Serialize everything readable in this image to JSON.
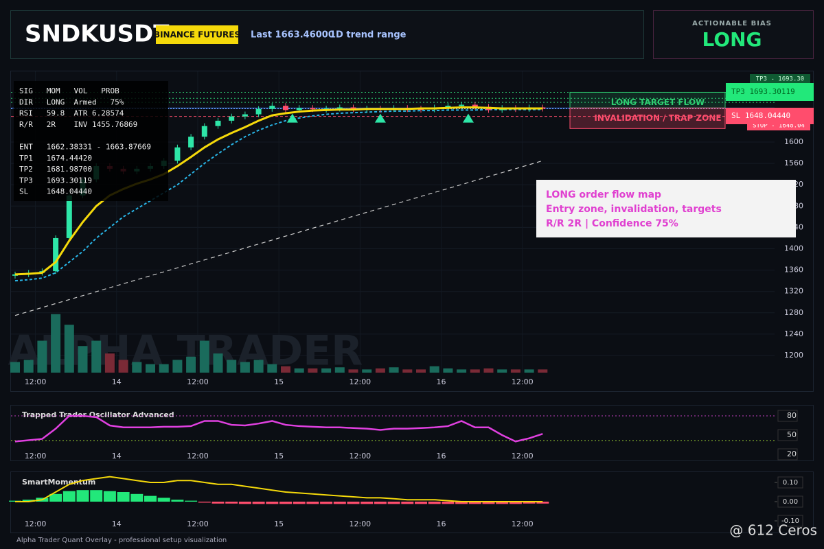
{
  "header": {
    "symbol": "SNDKUSDT",
    "badge": "BINANCE FUTURES",
    "last": "Last 1663.46000",
    "range": "1D trend range"
  },
  "bias": {
    "label": "ACTIONABLE BIAS",
    "value": "LONG"
  },
  "info": {
    "rows": [
      "SIG   MOM   VOL   PROB",
      "DIR   LONG  Armed   75%",
      "RSI   59.8  ATR 6.28574",
      "R/R   2R    INV 1455.76869",
      "",
      "ENT   1662.38331 - 1663.87669",
      "TP1   1674.44420",
      "TP2   1681.98700",
      "TP3   1693.30119",
      "SL    1648.04440"
    ]
  },
  "price": {
    "ylim": [
      1170,
      1710
    ],
    "yticks": [
      1200,
      1240,
      1280,
      1320,
      1360,
      1400,
      1440,
      1480,
      1520,
      1560,
      1600
    ],
    "xticks": [
      {
        "value": 1.5,
        "label": "12:00"
      },
      {
        "value": 7.5,
        "label": "14"
      },
      {
        "value": 13.5,
        "label": "12:00"
      },
      {
        "value": 19.5,
        "label": "15"
      },
      {
        "value": 25.5,
        "label": "12:00"
      },
      {
        "value": 31.5,
        "label": "16"
      },
      {
        "value": 37.5,
        "label": "12:00"
      }
    ],
    "close": [
      1352,
      1355,
      1358,
      1420,
      1500,
      1530,
      1555,
      1550,
      1545,
      1550,
      1555,
      1565,
      1590,
      1610,
      1630,
      1640,
      1648,
      1652,
      1662,
      1668,
      1660,
      1664,
      1662,
      1663,
      1665,
      1661,
      1663,
      1662,
      1664,
      1663,
      1661,
      1665,
      1668,
      1670,
      1666,
      1660,
      1664,
      1662,
      1665,
      1663
    ],
    "ema": [
      1352,
      1353,
      1355,
      1375,
      1415,
      1450,
      1480,
      1500,
      1512,
      1522,
      1530,
      1540,
      1555,
      1572,
      1590,
      1605,
      1617,
      1628,
      1640,
      1650,
      1654,
      1657,
      1659,
      1660,
      1661,
      1661,
      1662,
      1662,
      1662,
      1662,
      1663,
      1663,
      1664,
      1665,
      1665,
      1664,
      1663,
      1663,
      1663,
      1663
    ],
    "baseline": [
      1340,
      1342,
      1345,
      1355,
      1375,
      1395,
      1420,
      1440,
      1460,
      1475,
      1490,
      1505,
      1520,
      1540,
      1560,
      1578,
      1595,
      1610,
      1622,
      1632,
      1640,
      1645,
      1649,
      1652,
      1654,
      1655,
      1656,
      1657,
      1658,
      1658,
      1659,
      1659,
      1660,
      1660,
      1660,
      1661,
      1661,
      1661,
      1661,
      1661
    ],
    "trend": [
      1275,
      1565
    ],
    "volume": [
      10,
      12,
      30,
      55,
      45,
      25,
      30,
      18,
      12,
      10,
      8,
      8,
      12,
      15,
      30,
      18,
      12,
      10,
      12,
      8,
      6,
      4,
      4,
      4,
      5,
      3,
      3,
      4,
      5,
      3,
      3,
      6,
      4,
      3,
      3,
      4,
      3,
      3,
      3,
      3
    ],
    "levels": {
      "tp3": 1693.30119,
      "tp2": 1681.987,
      "tp1": 1674.4442,
      "entry_high": 1663.87669,
      "entry_low": 1662.38331,
      "sl": 1648.0444
    },
    "watermark": "ALPHA TRADER",
    "zones": {
      "target": "LONG TARGET FLOW",
      "trap": "INVALIDATION / TRAP ZONE"
    },
    "right_labels": {
      "tp3_small": "TP3 - 1693.30",
      "tp3": "TP3 1693.30119",
      "sl": "SL 1648.04440",
      "stop": "STOP - 1648.04"
    },
    "note": [
      "LONG order flow map",
      "Entry zone, invalidation, targets",
      "R/R 2R | Confidence 75%"
    ]
  },
  "oscillator": {
    "title": "Trapped Trader Oscillator Advanced",
    "ylim": [
      20,
      80
    ],
    "yticks": [
      80,
      50,
      20
    ],
    "values": [
      40,
      42,
      44,
      60,
      80,
      80,
      78,
      65,
      62,
      62,
      62,
      63,
      63,
      64,
      72,
      72,
      66,
      65,
      68,
      72,
      66,
      64,
      63,
      62,
      62,
      61,
      60,
      58,
      60,
      60,
      61,
      62,
      64,
      72,
      62,
      62,
      50,
      40,
      45,
      52
    ]
  },
  "momentum": {
    "title": "SmartMomentum",
    "ylim": [
      -0.1,
      0.1
    ],
    "yticks": [
      {
        "value": 0.1,
        "label": "0.10"
      },
      {
        "value": 0,
        "label": "0.00"
      },
      {
        "value": -0.1,
        "label": "-0.10"
      }
    ],
    "line": [
      0,
      0,
      0.01,
      0.05,
      0.09,
      0.11,
      0.12,
      0.13,
      0.12,
      0.11,
      0.1,
      0.1,
      0.11,
      0.11,
      0.1,
      0.09,
      0.09,
      0.08,
      0.07,
      0.06,
      0.05,
      0.045,
      0.04,
      0.035,
      0.03,
      0.025,
      0.02,
      0.02,
      0.015,
      0.01,
      0.01,
      0.01,
      0.005,
      0,
      0,
      0,
      0,
      0,
      0,
      0
    ],
    "histogram": [
      0.005,
      0.01,
      0.02,
      0.04,
      0.055,
      0.06,
      0.06,
      0.055,
      0.05,
      0.04,
      0.03,
      0.02,
      0.01,
      0.005,
      -0.005,
      -0.01,
      -0.01,
      -0.012,
      -0.012,
      -0.012,
      -0.012,
      -0.012,
      -0.012,
      -0.012,
      -0.012,
      -0.012,
      -0.012,
      -0.012,
      -0.012,
      -0.012,
      -0.012,
      -0.012,
      -0.012,
      -0.012,
      -0.012,
      -0.012,
      -0.012,
      -0.012,
      -0.01,
      -0.01
    ]
  },
  "footer": "Alpha Trader Quant Overlay - professional setup visualization",
  "credit": "@ 612 Ceros"
}
